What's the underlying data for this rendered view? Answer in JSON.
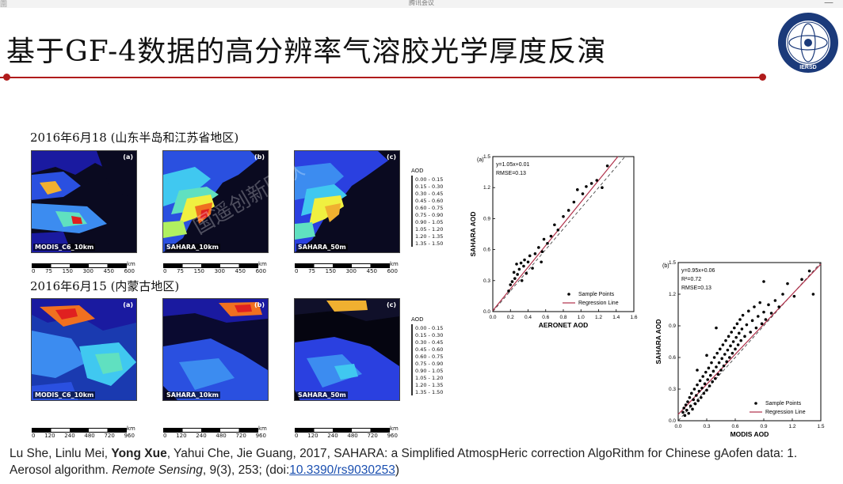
{
  "window": {
    "top_title": "腾讯会议",
    "top_left": "圍",
    "top_right": "—"
  },
  "slide": {
    "title": "基于GF-4数据的高分辨率气溶胶光学厚度反演",
    "logo_text": "IERSD"
  },
  "section1": {
    "title": "2016年6月18 (山东半岛和江苏省地区)"
  },
  "section2": {
    "title": "2016年6月15 (内蒙古地区)"
  },
  "maps_row1": [
    {
      "tag": "(a)",
      "label": "MODIS_C6_10km"
    },
    {
      "tag": "(b)",
      "label": "SAHARA_10km"
    },
    {
      "tag": "(c)",
      "label": "SAHARA_50m"
    }
  ],
  "maps_row2": [
    {
      "tag": "(a)",
      "label": "MODIS_C6_10km"
    },
    {
      "tag": "(b)",
      "label": "SAHARA_10km"
    },
    {
      "tag": "(c)",
      "label": "SAHARA_50m"
    }
  ],
  "scale_row1": {
    "ticks": [
      "0",
      "75",
      "150",
      "300",
      "450",
      "600"
    ],
    "unit": "km"
  },
  "scale_row2": {
    "ticks": [
      "0",
      "120",
      "240",
      "480",
      "720",
      "960"
    ],
    "unit": "km"
  },
  "legend": {
    "unit": "AOD",
    "items": [
      {
        "label": "0.00 - 0.15",
        "color": "#1a1aa0"
      },
      {
        "label": "0.15 - 0.30",
        "color": "#2a40e0"
      },
      {
        "label": "0.30 - 0.45",
        "color": "#3c8cf0"
      },
      {
        "label": "0.45 - 0.60",
        "color": "#40c8f0"
      },
      {
        "label": "0.60 - 0.75",
        "color": "#60e0c0"
      },
      {
        "label": "0.75 - 0.90",
        "color": "#b0f060"
      },
      {
        "label": "0.90 - 1.05",
        "color": "#f0f040"
      },
      {
        "label": "1.05 - 1.20",
        "color": "#f0b030"
      },
      {
        "label": "1.20 - 1.35",
        "color": "#f07020"
      },
      {
        "label": "1.35 - 1.50",
        "color": "#e02020"
      }
    ]
  },
  "chart_data": [
    {
      "type": "scatter",
      "panel": "(a)",
      "xlabel": "AERONET AOD",
      "ylabel": "SAHARA AOD",
      "xlim": [
        0.0,
        1.6
      ],
      "ylim": [
        0.0,
        1.5
      ],
      "xticks": [
        "0.0",
        "0.2",
        "0.4",
        "0.6",
        "0.8",
        "1.0",
        "1.2",
        "1.4",
        "1.6"
      ],
      "yticks": [
        "0.0",
        "0.3",
        "0.6",
        "0.9",
        "1.2",
        "1.5"
      ],
      "equation": "y=1.05x+0.01",
      "rmse": "RMSE=0.13",
      "legend": {
        "points": "Sample Points",
        "line": "Regression Line"
      },
      "regression": {
        "slope": 1.05,
        "intercept": 0.01
      },
      "points": [
        [
          0.2,
          0.26
        ],
        [
          0.22,
          0.29
        ],
        [
          0.24,
          0.38
        ],
        [
          0.25,
          0.32
        ],
        [
          0.27,
          0.46
        ],
        [
          0.28,
          0.36
        ],
        [
          0.3,
          0.41
        ],
        [
          0.32,
          0.47
        ],
        [
          0.33,
          0.3
        ],
        [
          0.35,
          0.44
        ],
        [
          0.36,
          0.5
        ],
        [
          0.38,
          0.37
        ],
        [
          0.4,
          0.48
        ],
        [
          0.42,
          0.54
        ],
        [
          0.45,
          0.42
        ],
        [
          0.48,
          0.56
        ],
        [
          0.52,
          0.62
        ],
        [
          0.55,
          0.48
        ],
        [
          0.58,
          0.7
        ],
        [
          0.62,
          0.66
        ],
        [
          0.66,
          0.73
        ],
        [
          0.7,
          0.84
        ],
        [
          0.74,
          0.79
        ],
        [
          0.8,
          0.92
        ],
        [
          0.86,
          0.98
        ],
        [
          0.92,
          1.06
        ],
        [
          0.96,
          1.18
        ],
        [
          1.02,
          1.14
        ],
        [
          1.06,
          1.21
        ],
        [
          1.12,
          1.24
        ],
        [
          1.18,
          1.27
        ],
        [
          1.24,
          1.2
        ],
        [
          1.3,
          1.41
        ],
        [
          0.56,
          0.58
        ],
        [
          0.18,
          0.2
        ]
      ]
    },
    {
      "type": "scatter",
      "panel": "(b)",
      "xlabel": "MODIS AOD",
      "ylabel": "SAHARA AOD",
      "xlim": [
        0.0,
        1.5
      ],
      "ylim": [
        0.0,
        1.5
      ],
      "xticks": [
        "0.0",
        "0.3",
        "0.6",
        "0.9",
        "1.2",
        "1.5"
      ],
      "yticks": [
        "0.0",
        "0.3",
        "0.6",
        "0.9",
        "1.2",
        "1.5"
      ],
      "equation": "y=0.95x+0.06",
      "r2": "R²=0.72",
      "rmse": "RMSE=0.13",
      "legend": {
        "points": "Sample Points",
        "line": "Regression Line"
      },
      "regression": {
        "slope": 0.95,
        "intercept": 0.06
      },
      "points": [
        [
          0.05,
          0.08
        ],
        [
          0.06,
          0.12
        ],
        [
          0.07,
          0.05
        ],
        [
          0.08,
          0.15
        ],
        [
          0.09,
          0.1
        ],
        [
          0.1,
          0.18
        ],
        [
          0.11,
          0.07
        ],
        [
          0.12,
          0.22
        ],
        [
          0.13,
          0.14
        ],
        [
          0.14,
          0.26
        ],
        [
          0.15,
          0.11
        ],
        [
          0.16,
          0.2
        ],
        [
          0.17,
          0.3
        ],
        [
          0.18,
          0.16
        ],
        [
          0.19,
          0.24
        ],
        [
          0.2,
          0.34
        ],
        [
          0.21,
          0.19
        ],
        [
          0.22,
          0.28
        ],
        [
          0.23,
          0.38
        ],
        [
          0.24,
          0.22
        ],
        [
          0.25,
          0.31
        ],
        [
          0.26,
          0.42
        ],
        [
          0.27,
          0.26
        ],
        [
          0.28,
          0.35
        ],
        [
          0.29,
          0.46
        ],
        [
          0.3,
          0.29
        ],
        [
          0.31,
          0.39
        ],
        [
          0.32,
          0.5
        ],
        [
          0.33,
          0.33
        ],
        [
          0.34,
          0.43
        ],
        [
          0.35,
          0.55
        ],
        [
          0.36,
          0.37
        ],
        [
          0.37,
          0.47
        ],
        [
          0.38,
          0.6
        ],
        [
          0.39,
          0.4
        ],
        [
          0.4,
          0.51
        ],
        [
          0.41,
          0.64
        ],
        [
          0.42,
          0.44
        ],
        [
          0.43,
          0.55
        ],
        [
          0.44,
          0.68
        ],
        [
          0.45,
          0.48
        ],
        [
          0.46,
          0.59
        ],
        [
          0.47,
          0.72
        ],
        [
          0.48,
          0.52
        ],
        [
          0.49,
          0.63
        ],
        [
          0.5,
          0.76
        ],
        [
          0.51,
          0.56
        ],
        [
          0.52,
          0.67
        ],
        [
          0.53,
          0.8
        ],
        [
          0.54,
          0.6
        ],
        [
          0.55,
          0.71
        ],
        [
          0.56,
          0.84
        ],
        [
          0.57,
          0.64
        ],
        [
          0.58,
          0.75
        ],
        [
          0.59,
          0.88
        ],
        [
          0.6,
          0.68
        ],
        [
          0.61,
          0.79
        ],
        [
          0.62,
          0.92
        ],
        [
          0.63,
          0.72
        ],
        [
          0.64,
          0.83
        ],
        [
          0.65,
          0.96
        ],
        [
          0.66,
          0.76
        ],
        [
          0.67,
          0.87
        ],
        [
          0.68,
          1.0
        ],
        [
          0.7,
          0.8
        ],
        [
          0.72,
          0.91
        ],
        [
          0.74,
          1.04
        ],
        [
          0.76,
          0.84
        ],
        [
          0.78,
          0.95
        ],
        [
          0.8,
          1.08
        ],
        [
          0.82,
          0.88
        ],
        [
          0.84,
          0.99
        ],
        [
          0.86,
          1.12
        ],
        [
          0.88,
          0.92
        ],
        [
          0.9,
          1.03
        ],
        [
          0.92,
          0.96
        ],
        [
          0.95,
          1.1
        ],
        [
          0.98,
          1.02
        ],
        [
          1.02,
          1.14
        ],
        [
          1.06,
          1.08
        ],
        [
          1.1,
          1.2
        ],
        [
          1.15,
          1.3
        ],
        [
          1.22,
          1.18
        ],
        [
          1.3,
          1.34
        ],
        [
          1.38,
          1.42
        ],
        [
          1.42,
          1.2
        ],
        [
          0.9,
          1.32
        ],
        [
          0.4,
          0.88
        ],
        [
          0.3,
          0.62
        ],
        [
          0.2,
          0.48
        ]
      ]
    }
  ],
  "citation": {
    "authors_before": "Lu She, Linlu Mei, ",
    "author_bold": "Yong Xue",
    "authors_after": ", Yahui Che, Jie Guang, 2017, SAHARA: a Simplified AtmospHeric correction AlgoRithm for Chinese gAofen data: 1. Aerosol algorithm. ",
    "journal": "Remote Sensing",
    "details": ", 9(3), 253; (doi:",
    "doi": "10.3390/rs9030253",
    "close": ")"
  },
  "watermark": {
    "text": "国遥创新团队"
  }
}
